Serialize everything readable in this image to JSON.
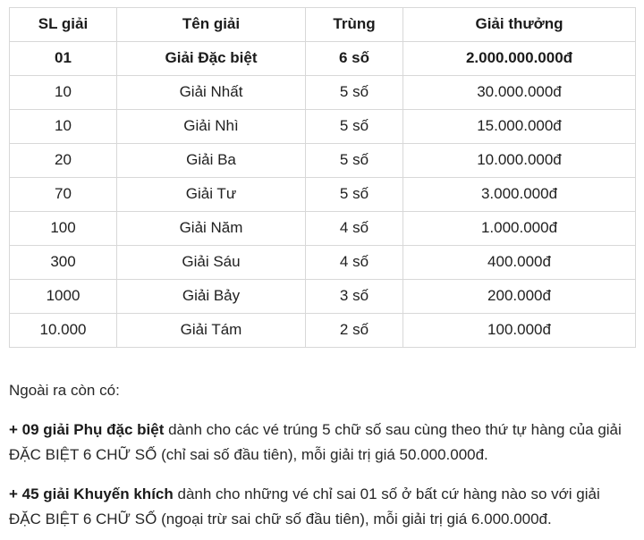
{
  "colors": {
    "background": "#ffffff",
    "table_border": "#d8d8d8",
    "text": "#272727",
    "text_bold": "#1b1b1b"
  },
  "table": {
    "headers": [
      "SL giải",
      "Tên giải",
      "Trùng",
      "Giải thưởng"
    ],
    "rows": [
      {
        "quantity": "01",
        "name": "Giải Đặc biệt",
        "match": "6 số",
        "prize": "2.000.000.000đ",
        "bold": true
      },
      {
        "quantity": "10",
        "name": "Giải Nhất",
        "match": "5 số",
        "prize": "30.000.000đ",
        "bold": false
      },
      {
        "quantity": "10",
        "name": "Giải Nhì",
        "match": "5 số",
        "prize": "15.000.000đ",
        "bold": false
      },
      {
        "quantity": "20",
        "name": "Giải Ba",
        "match": "5 số",
        "prize": "10.000.000đ",
        "bold": false
      },
      {
        "quantity": "70",
        "name": "Giải Tư",
        "match": "5 số",
        "prize": "3.000.000đ",
        "bold": false
      },
      {
        "quantity": "100",
        "name": "Giải Năm",
        "match": "4 số",
        "prize": "1.000.000đ",
        "bold": false
      },
      {
        "quantity": "300",
        "name": "Giải Sáu",
        "match": "4 số",
        "prize": "400.000đ",
        "bold": false
      },
      {
        "quantity": "1000",
        "name": "Giải Bảy",
        "match": "3 số",
        "prize": "200.000đ",
        "bold": false
      },
      {
        "quantity": "10.000",
        "name": "Giải Tám",
        "match": "2 số",
        "prize": "100.000đ",
        "bold": false
      }
    ]
  },
  "notes": {
    "intro": "Ngoài ra còn có:",
    "items": [
      {
        "lead": "+ 09 giải Phụ đặc biệt",
        "rest": " dành cho các vé trúng 5 chữ số sau cùng theo thứ tự hàng của giải ĐẶC BIỆT 6 CHỮ SỐ (chỉ sai số đầu tiên), mỗi giải trị giá 50.000.000đ."
      },
      {
        "lead": "+ 45 giải Khuyến khích",
        "rest": " dành cho những vé chỉ sai 01 số ở bất cứ hàng nào so với giải ĐẶC BIỆT 6 CHỮ SỐ (ngoại trừ sai chữ số đầu tiên), mỗi giải trị giá 6.000.000đ."
      }
    ]
  }
}
